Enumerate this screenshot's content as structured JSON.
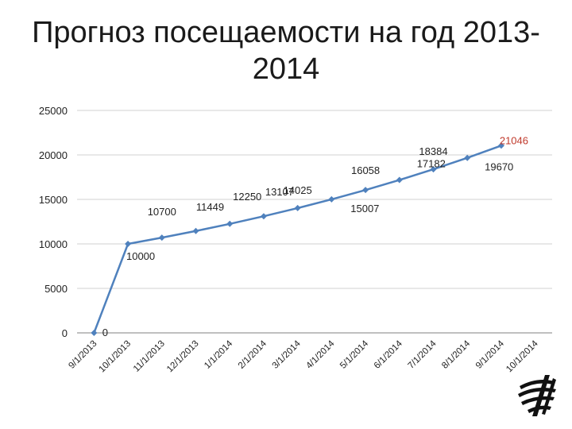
{
  "title_line1": "Прогноз посещаемости на год 2013-",
  "title_line2": "2014",
  "colors": {
    "line": "#4f81bd",
    "grid": "#d0d0d0",
    "axis": "#808080",
    "text": "#222222",
    "highlight": "#c0392b"
  },
  "chart_data": {
    "type": "line",
    "title": "Прогноз посещаемости на год 2013-2014",
    "categories": [
      "10/1/2013",
      "11/1/2013",
      "12/1/2013",
      "1/1/2014",
      "2/1/2014",
      "3/1/2014",
      "4/1/2014",
      "5/1/2014",
      "6/1/2014",
      "7/1/2014",
      "8/1/2014",
      "9/1/2014",
      "10/1/2014"
    ],
    "x_dates": [
      "9/1/2013",
      "10/1/2013",
      "11/1/2013",
      "12/1/2013",
      "1/1/2014",
      "2/1/2014",
      "3/1/2014",
      "4/1/2014",
      "5/1/2014",
      "6/1/2014",
      "7/1/2014",
      "8/1/2014",
      "9/1/2014",
      "10/1/2014"
    ],
    "series": [
      {
        "values": [
          0,
          10000,
          10700,
          11449,
          12250,
          13107,
          14025,
          15007,
          16058,
          17182,
          18384,
          19670,
          21046
        ]
      }
    ],
    "data_labels": [
      "0",
      "10000",
      "10700",
      "11449",
      "12250",
      "13107",
      "14025",
      "15007",
      "16058",
      "17182",
      "18384",
      "19670",
      "21046"
    ],
    "y_ticks": [
      "0",
      "5000",
      "10000",
      "15000",
      "20000",
      "25000"
    ],
    "ylim": [
      0,
      25000
    ],
    "grid": true,
    "legend": "none",
    "xlabel": "",
    "ylabel": ""
  }
}
